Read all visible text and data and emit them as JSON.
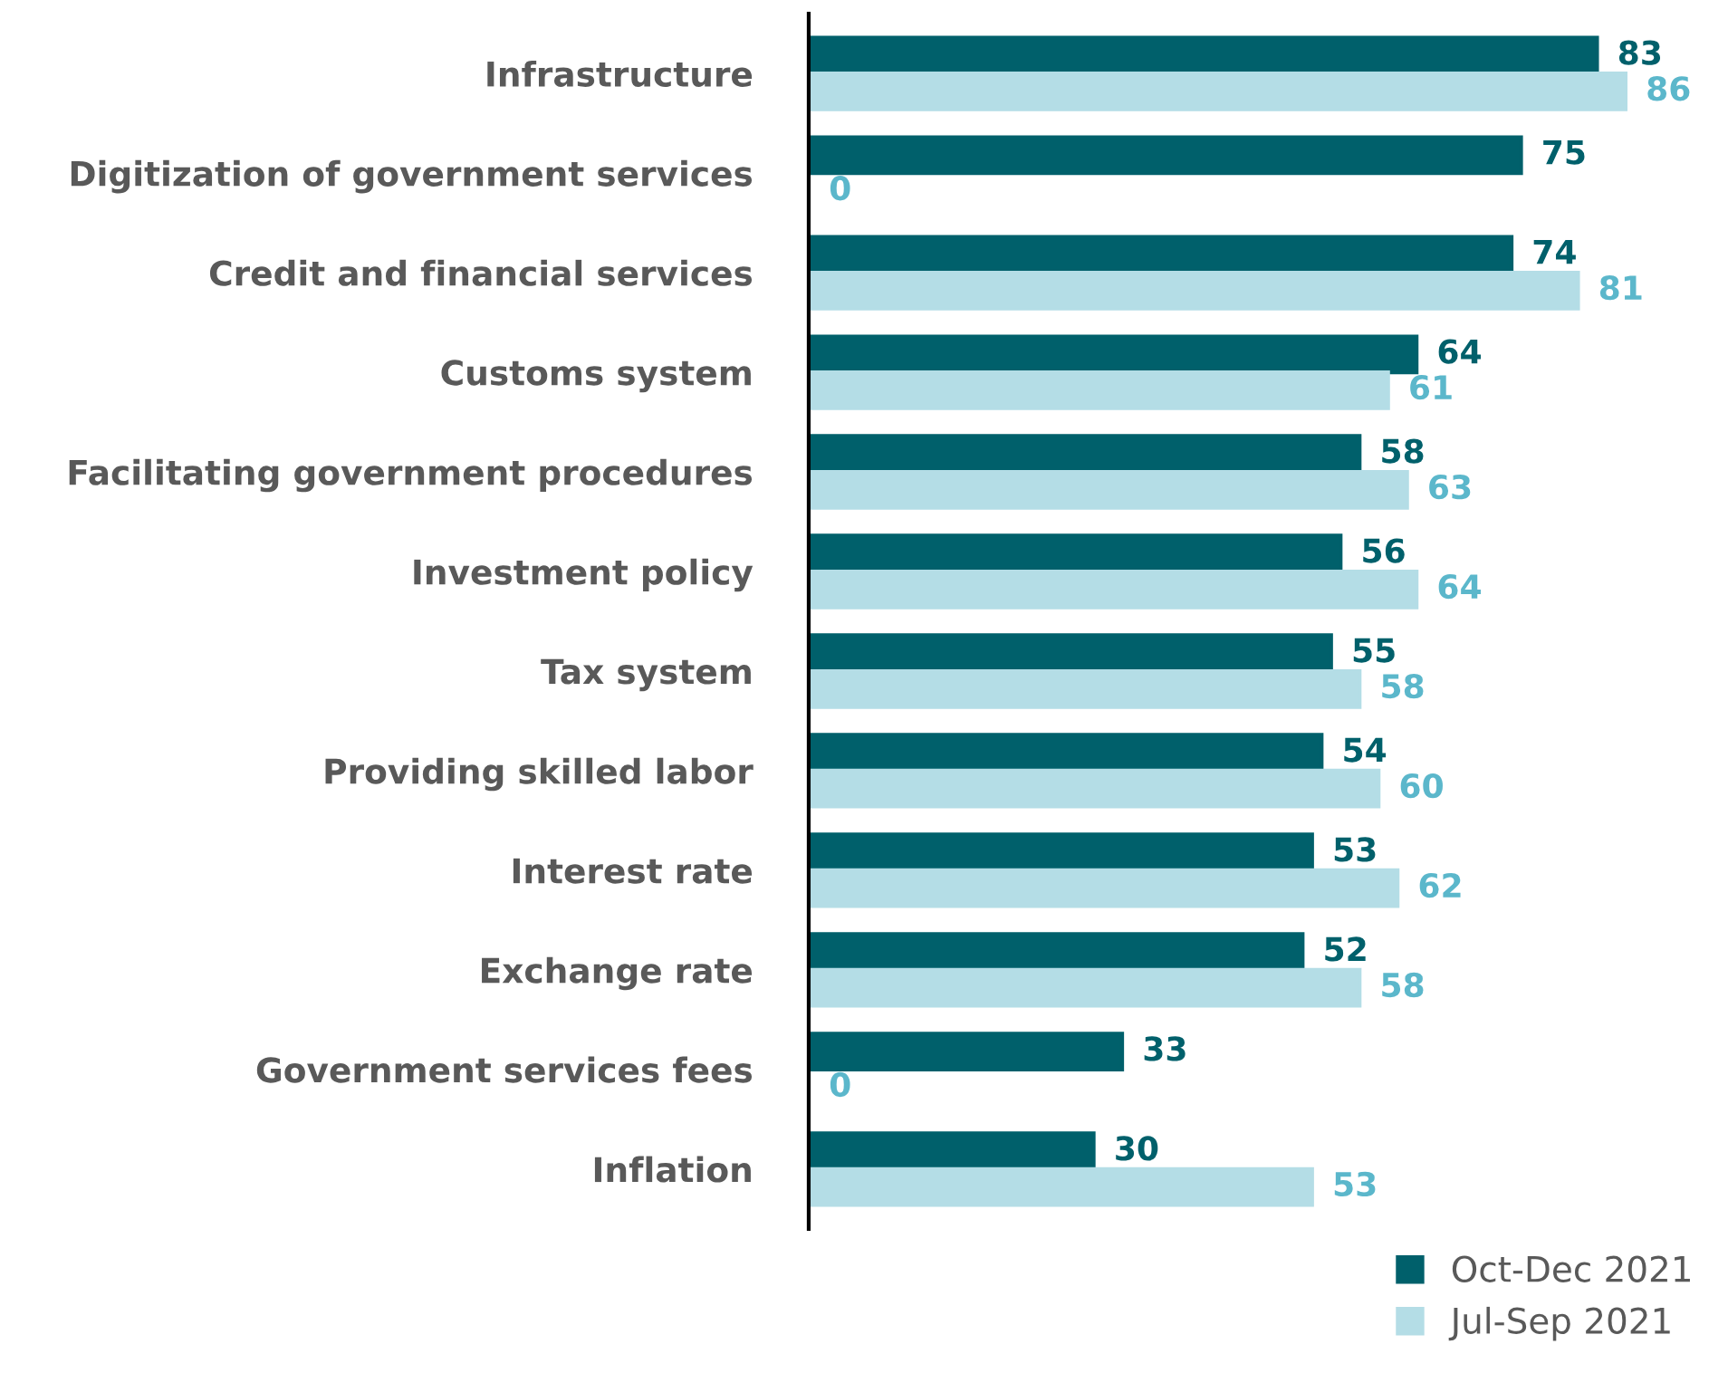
{
  "chart_data": {
    "type": "bar",
    "orientation": "horizontal",
    "categories": [
      "Infrastructure",
      "Digitization of government services",
      "Credit and financial services",
      "Customs system",
      "Facilitating government procedures",
      "Investment policy",
      "Tax system",
      "Providing skilled labor",
      "Interest rate",
      "Exchange rate",
      "Government services fees",
      "Inflation"
    ],
    "series": [
      {
        "name": "Oct-Dec 2021",
        "color": "#00606b",
        "values": [
          83,
          75,
          74,
          64,
          58,
          56,
          55,
          54,
          53,
          52,
          33,
          30
        ]
      },
      {
        "name": "Jul-Sep 2021",
        "color": "#b4dde6",
        "values": [
          86,
          0,
          81,
          61,
          63,
          64,
          58,
          60,
          62,
          58,
          0,
          53
        ]
      }
    ],
    "data_labels": true,
    "tick_labels": "y",
    "legend": "bottom right",
    "grid": false
  }
}
